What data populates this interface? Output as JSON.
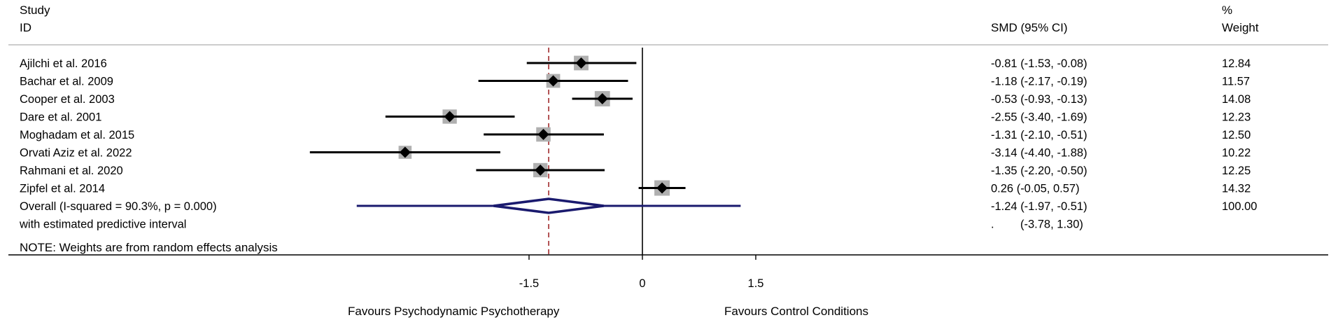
{
  "header": {
    "study_line1": "Study",
    "study_line2": "ID",
    "effect_col": "SMD (95% CI)",
    "weight_line1": "%",
    "weight_line2": "Weight"
  },
  "note": "NOTE: Weights are from random effects analysis",
  "favours_left": "Favours Psychodynamic Psychotherapy",
  "favours_right": "Favours Control Conditions",
  "colors": {
    "overall_diamond": "#1a1a6e",
    "null_line": "#000000",
    "pooled_line": "#a0282a",
    "weight_box": "#b0b0b0"
  },
  "chart_data": {
    "type": "forest",
    "xaxis": {
      "ticks": [
        -1.5,
        0,
        1.5
      ],
      "tick_labels": [
        "-1.5",
        "0",
        "1.5"
      ],
      "range": [
        -4.73,
        4.73
      ]
    },
    "studies": [
      {
        "label": "Ajilchi et al. 2016",
        "smd": -0.81,
        "lo": -1.53,
        "hi": -0.08,
        "ci_text": "-0.81 (-1.53, -0.08)",
        "weight": 12.84,
        "weight_text": "12.84"
      },
      {
        "label": "Bachar et al. 2009",
        "smd": -1.18,
        "lo": -2.17,
        "hi": -0.19,
        "ci_text": "-1.18 (-2.17, -0.19)",
        "weight": 11.57,
        "weight_text": "11.57"
      },
      {
        "label": "Cooper et al. 2003",
        "smd": -0.53,
        "lo": -0.93,
        "hi": -0.13,
        "ci_text": "-0.53 (-0.93, -0.13)",
        "weight": 14.08,
        "weight_text": "14.08"
      },
      {
        "label": "Dare et al. 2001",
        "smd": -2.55,
        "lo": -3.4,
        "hi": -1.69,
        "ci_text": "-2.55 (-3.40, -1.69)",
        "weight": 12.23,
        "weight_text": "12.23"
      },
      {
        "label": "Moghadam et al. 2015",
        "smd": -1.31,
        "lo": -2.1,
        "hi": -0.51,
        "ci_text": "-1.31 (-2.10, -0.51)",
        "weight": 12.5,
        "weight_text": "12.50"
      },
      {
        "label": "Orvati Aziz et al. 2022",
        "smd": -3.14,
        "lo": -4.4,
        "hi": -1.88,
        "ci_text": "-3.14 (-4.40, -1.88)",
        "weight": 10.22,
        "weight_text": "10.22"
      },
      {
        "label": "Rahmani et al. 2020",
        "smd": -1.35,
        "lo": -2.2,
        "hi": -0.5,
        "ci_text": "-1.35 (-2.20, -0.50)",
        "weight": 12.25,
        "weight_text": "12.25"
      },
      {
        "label": "Zipfel et al. 2014",
        "smd": 0.26,
        "lo": -0.05,
        "hi": 0.57,
        "ci_text": "0.26 (-0.05, 0.57)",
        "weight": 14.32,
        "weight_text": "14.32"
      }
    ],
    "overall": {
      "label": "Overall  (I-squared = 90.3%, p = 0.000)",
      "smd": -1.24,
      "lo": -1.97,
      "hi": -0.51,
      "ci_text": "-1.24 (-1.97, -0.51)",
      "weight_text": "100.00"
    },
    "predictive": {
      "label": "with estimated predictive interval",
      "lo": -3.78,
      "hi": 1.3,
      "ci_text": "(-3.78, 1.30)",
      "dot": "."
    }
  }
}
